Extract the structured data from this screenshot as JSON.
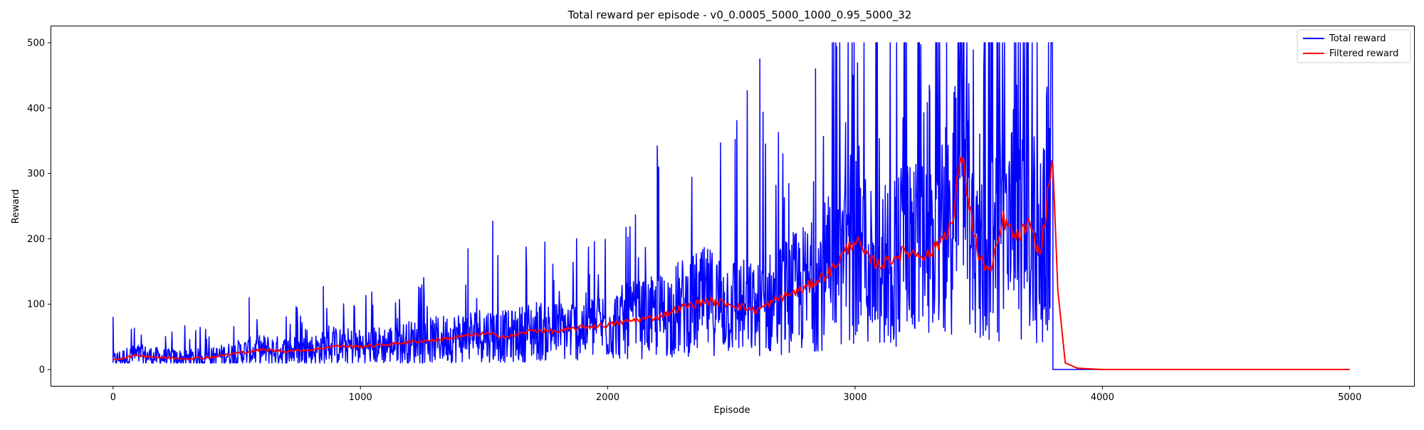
{
  "chart_data": {
    "type": "line",
    "title": "Total reward per episode - v0_0.0005_5000_1000_0.95_5000_32",
    "xlabel": "Episode",
    "ylabel": "Reward",
    "xlim": [
      -250,
      5260
    ],
    "ylim": [
      -25,
      525
    ],
    "xticks": [
      0,
      1000,
      2000,
      3000,
      4000,
      5000
    ],
    "yticks": [
      0,
      100,
      200,
      300,
      400,
      500
    ],
    "grid": false,
    "legend_position": "top-right",
    "total_episodes": 5000,
    "last_active_episode": 3800,
    "series": [
      {
        "name": "Total reward",
        "color": "#0000ff",
        "description": "Noisy per-episode reward; envelope follows the points below, dropping to 0 after episode 3800",
        "envelope_x": [
          0,
          200,
          400,
          600,
          800,
          1000,
          1200,
          1400,
          1600,
          1800,
          2000,
          2200,
          2400,
          2600,
          2800,
          2900,
          3000,
          3100,
          3200,
          3300,
          3400,
          3500,
          3600,
          3700,
          3800
        ],
        "envelope_min": [
          10,
          10,
          10,
          10,
          10,
          10,
          10,
          10,
          10,
          10,
          10,
          10,
          10,
          10,
          10,
          10,
          10,
          10,
          10,
          10,
          10,
          10,
          10,
          10,
          10
        ],
        "envelope_max": [
          80,
          65,
          70,
          110,
          95,
          120,
          130,
          180,
          200,
          195,
          240,
          340,
          330,
          470,
          330,
          500,
          500,
          500,
          500,
          500,
          500,
          500,
          500,
          500,
          500
        ],
        "peaks": [
          {
            "x": 0,
            "y": 80
          },
          {
            "x": 550,
            "y": 110
          },
          {
            "x": 850,
            "y": 127
          },
          {
            "x": 1435,
            "y": 185
          },
          {
            "x": 1535,
            "y": 227
          },
          {
            "x": 2200,
            "y": 342
          },
          {
            "x": 2515,
            "y": 352
          },
          {
            "x": 2615,
            "y": 475
          },
          {
            "x": 2840,
            "y": 460
          }
        ],
        "after_3800": 0
      },
      {
        "name": "Filtered reward",
        "color": "#ff0000",
        "x": [
          0,
          100,
          200,
          300,
          400,
          500,
          600,
          700,
          800,
          900,
          1000,
          1100,
          1200,
          1300,
          1400,
          1500,
          1600,
          1700,
          1800,
          1900,
          2000,
          2100,
          2200,
          2300,
          2400,
          2500,
          2600,
          2700,
          2800,
          2900,
          3000,
          3050,
          3100,
          3200,
          3300,
          3350,
          3400,
          3425,
          3450,
          3500,
          3550,
          3600,
          3650,
          3700,
          3750,
          3790,
          3800,
          3820,
          3850,
          3900,
          4000,
          5000
        ],
        "values": [
          15,
          22,
          18,
          17,
          19,
          25,
          30,
          28,
          30,
          36,
          35,
          38,
          42,
          45,
          50,
          55,
          50,
          60,
          58,
          65,
          68,
          75,
          80,
          95,
          105,
          100,
          90,
          110,
          125,
          150,
          200,
          170,
          160,
          180,
          175,
          200,
          230,
          335,
          280,
          170,
          150,
          230,
          200,
          220,
          175,
          300,
          310,
          120,
          10,
          2,
          0,
          0
        ]
      }
    ]
  }
}
